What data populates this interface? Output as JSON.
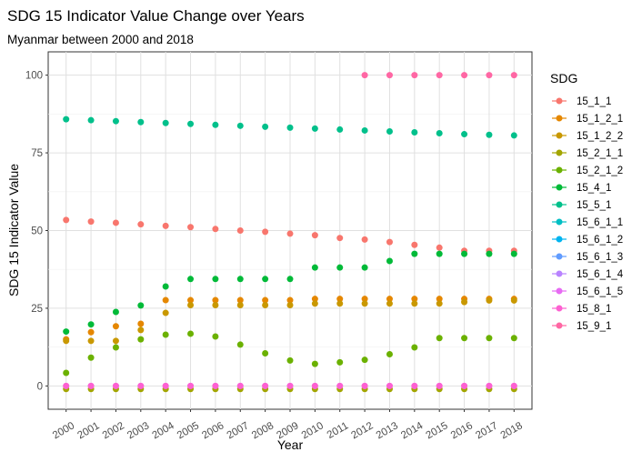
{
  "chart_data": {
    "type": "scatter",
    "title": "SDG 15 Indicator Value Change over Years",
    "subtitle": "Myanmar between 2000 and 2018",
    "xlabel": "Year",
    "ylabel": "SDG 15 Indicator Value",
    "x": [
      2000,
      2001,
      2002,
      2003,
      2004,
      2005,
      2006,
      2007,
      2008,
      2009,
      2010,
      2011,
      2012,
      2013,
      2014,
      2015,
      2016,
      2017,
      2018
    ],
    "x_tick_labels": [
      "2000",
      "2001",
      "2002",
      "2003",
      "2004",
      "2005",
      "2006",
      "2007",
      "2008",
      "2009",
      "2010",
      "2011",
      "2012",
      "2013",
      "2014",
      "2015",
      "2016",
      "2017",
      "2018"
    ],
    "y_ticks": [
      0,
      25,
      50,
      75,
      100
    ],
    "y_tick_labels": [
      "0",
      "25",
      "50",
      "75",
      "100"
    ],
    "ylim": [
      -7.5,
      107.5
    ],
    "grid": true,
    "legend": {
      "title": "SDG",
      "placement": "right"
    },
    "series": [
      {
        "name": "15_1_1",
        "color": "#F8766D",
        "values": [
          53.4,
          52.9,
          52.5,
          52.0,
          51.5,
          51.1,
          50.5,
          50.0,
          49.6,
          49.0,
          48.5,
          47.6,
          47.1,
          46.3,
          45.4,
          44.5,
          43.5,
          43.5,
          43.5
        ]
      },
      {
        "name": "15_1_2_1",
        "color": "#E58700",
        "values": [
          15.0,
          17.3,
          19.2,
          20.0,
          27.6,
          27.6,
          27.6,
          27.6,
          27.6,
          27.6,
          28.0,
          28.0,
          28.0,
          28.0,
          28.0,
          28.0,
          28.0,
          28.0,
          28.0
        ]
      },
      {
        "name": "15_1_2_2",
        "color": "#C99800",
        "values": [
          14.5,
          14.5,
          14.5,
          18.0,
          23.5,
          26.0,
          26.0,
          26.0,
          26.0,
          26.0,
          26.5,
          26.5,
          26.5,
          26.5,
          26.5,
          26.5,
          27.0,
          27.5,
          27.5
        ]
      },
      {
        "name": "15_2_1_1",
        "color": "#A3A500",
        "values": [
          -1,
          -1,
          -1,
          -1,
          -1,
          -1,
          -1,
          -1,
          -1,
          -1,
          -1,
          -1,
          -1,
          -1,
          -1,
          -1,
          -1,
          -1,
          -1
        ]
      },
      {
        "name": "15_2_1_2",
        "color": "#6BB100",
        "values": [
          4.2,
          9.1,
          12.4,
          15.0,
          16.5,
          16.8,
          15.9,
          13.3,
          10.5,
          8.2,
          7.1,
          7.6,
          8.4,
          10.2,
          12.4,
          15.4,
          15.4,
          15.4,
          15.4
        ]
      },
      {
        "name": "15_4_1",
        "color": "#00BA38",
        "values": [
          17.5,
          19.8,
          23.8,
          25.9,
          32.0,
          34.4,
          34.4,
          34.4,
          34.4,
          34.4,
          38.1,
          38.1,
          38.1,
          40.2,
          42.5,
          42.5,
          42.5,
          42.5,
          42.5
        ]
      },
      {
        "name": "15_5_1",
        "color": "#00C08B",
        "values": [
          85.8,
          85.5,
          85.2,
          84.9,
          84.6,
          84.3,
          84.0,
          83.7,
          83.4,
          83.1,
          82.8,
          82.5,
          82.2,
          81.9,
          81.6,
          81.3,
          81.0,
          80.8,
          80.6
        ]
      },
      {
        "name": "15_6_1_1",
        "color": "#00BFC4",
        "values": []
      },
      {
        "name": "15_6_1_2",
        "color": "#00B4F0",
        "values": []
      },
      {
        "name": "15_6_1_3",
        "color": "#619CFF",
        "values": []
      },
      {
        "name": "15_6_1_4",
        "color": "#B983FF",
        "values": []
      },
      {
        "name": "15_6_1_5",
        "color": "#E76BF3",
        "values": [
          0,
          0,
          0,
          0,
          0,
          0,
          0,
          0,
          0,
          0,
          0,
          0,
          0,
          0,
          0,
          0,
          0,
          0,
          0
        ]
      },
      {
        "name": "15_8_1",
        "color": "#FD61D1",
        "values": [
          0,
          0,
          0,
          0,
          0,
          0,
          0,
          0,
          0,
          0,
          0,
          0,
          0,
          0,
          0,
          0,
          0,
          0,
          0
        ]
      },
      {
        "name": "15_9_1",
        "color": "#FF67A4",
        "values": [
          null,
          null,
          null,
          null,
          null,
          null,
          null,
          null,
          null,
          null,
          null,
          null,
          100,
          100,
          100,
          100,
          100,
          100,
          100
        ]
      }
    ]
  }
}
